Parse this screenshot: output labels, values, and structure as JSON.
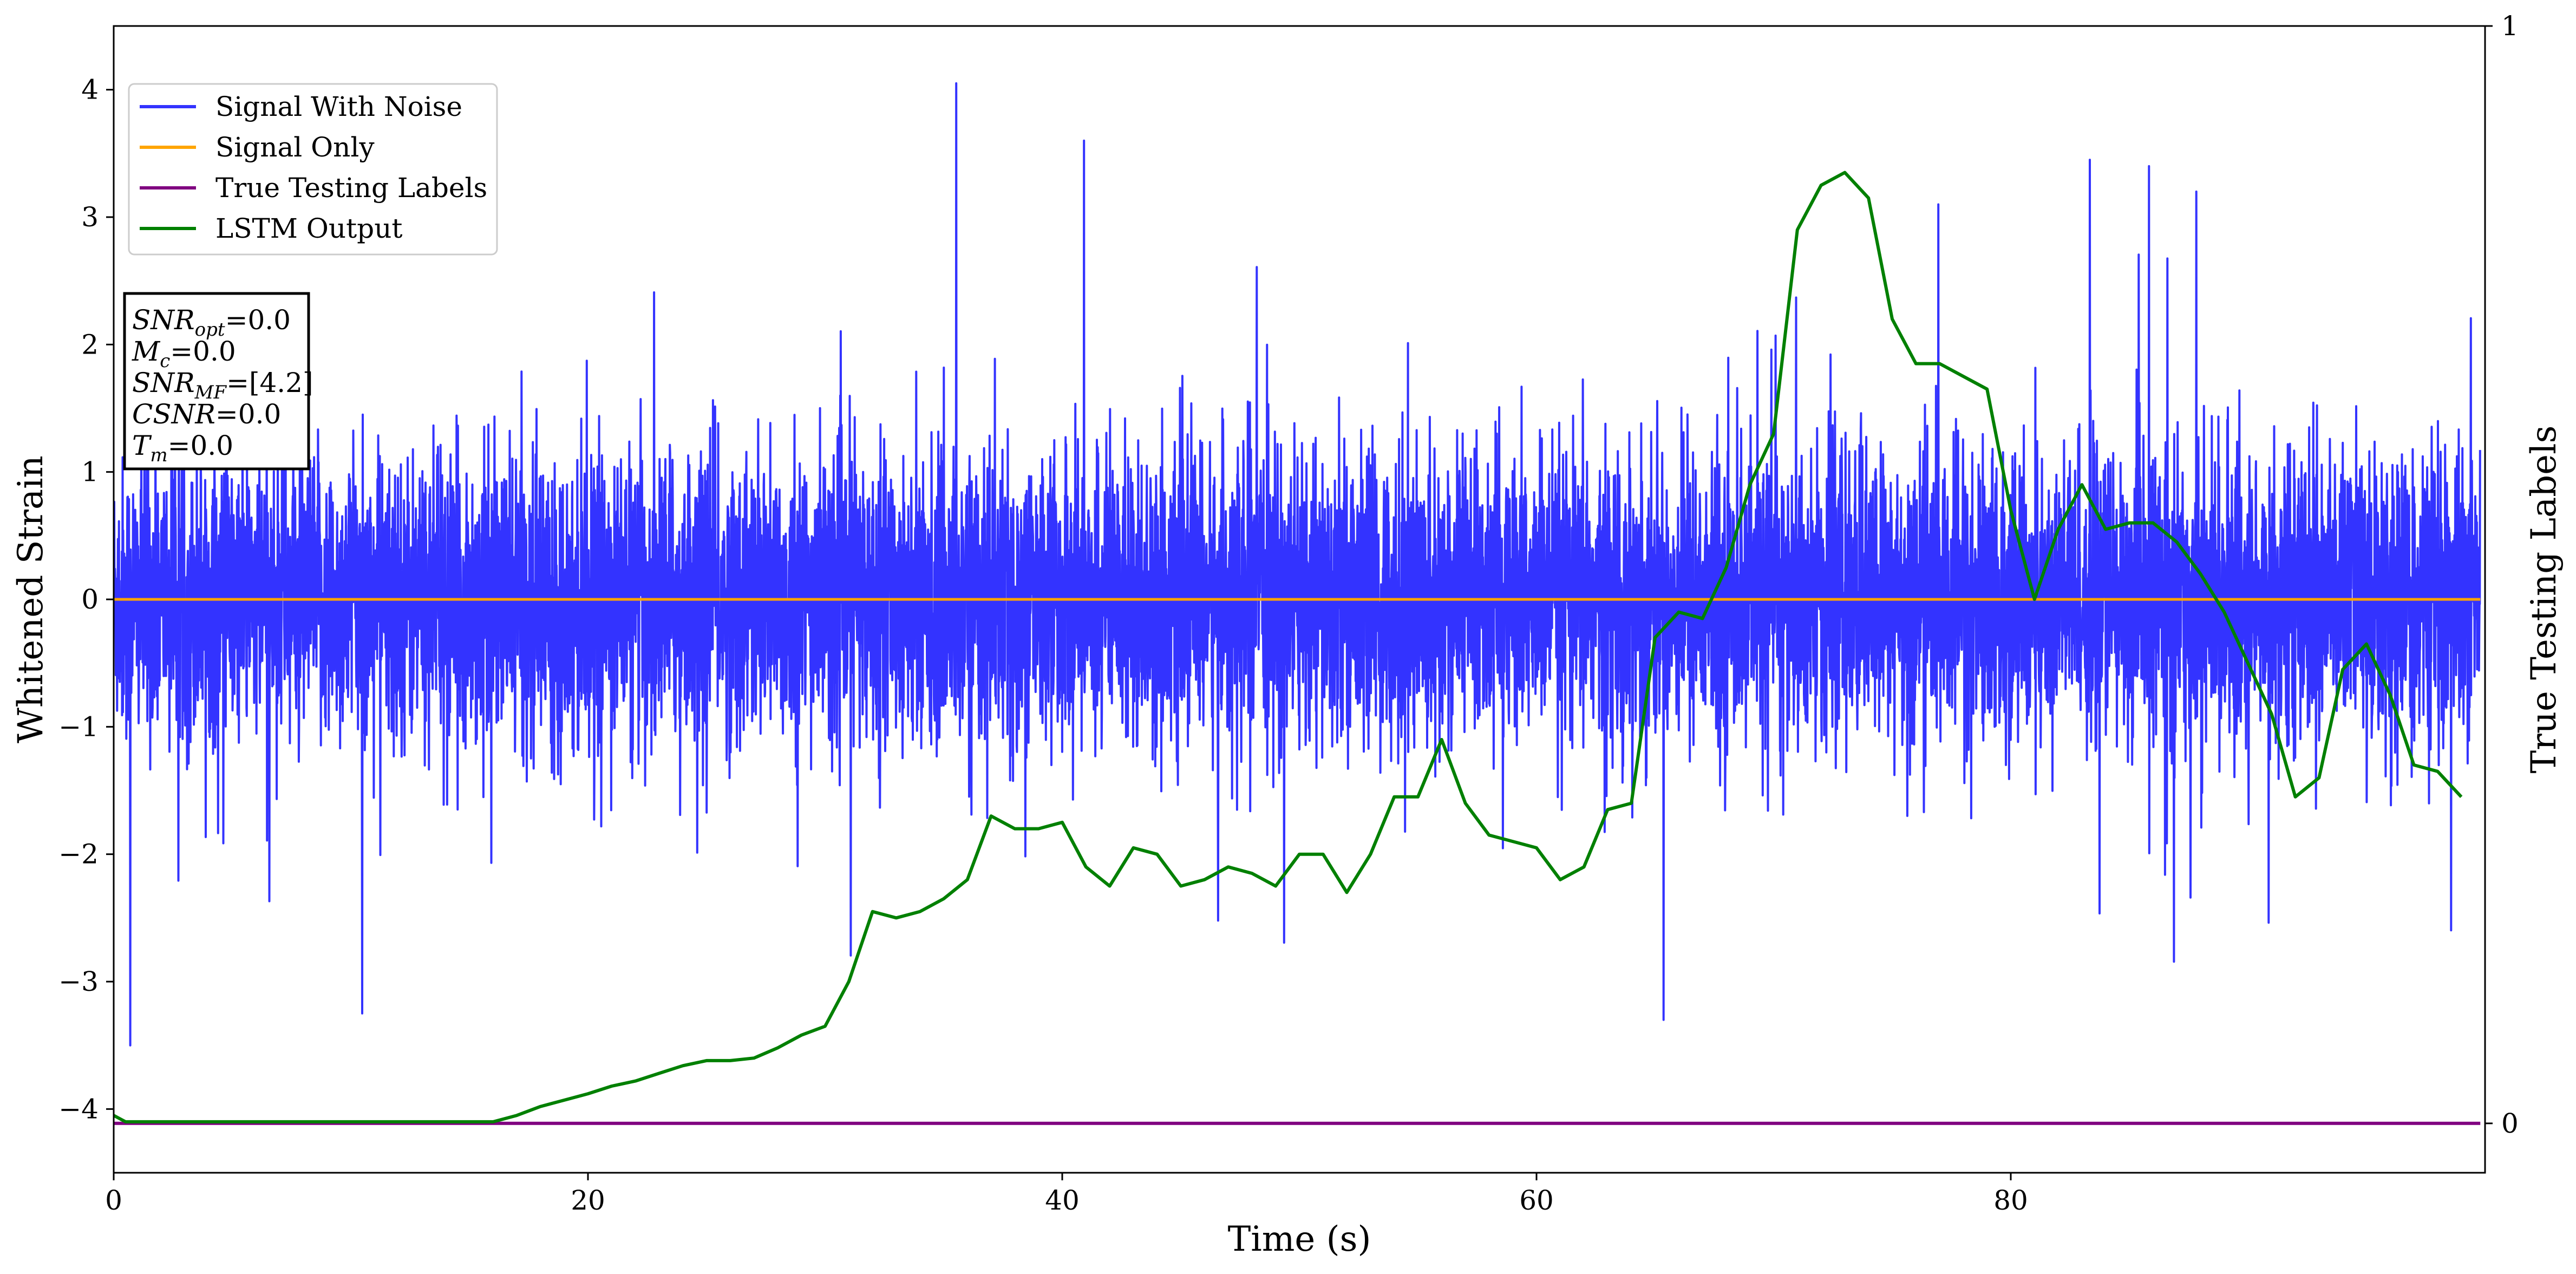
{
  "chart_data": {
    "type": "line",
    "xlabel": "Time (s)",
    "ylabel": "Whitened Strain",
    "y2label": "True Testing Labels",
    "xlim": [
      0,
      100
    ],
    "ylim": [
      -4.5,
      4.5
    ],
    "y2lim": [
      -0.045,
      1.0
    ],
    "x_ticks": [
      0,
      20,
      40,
      60,
      80
    ],
    "y_ticks": [
      -4,
      -3,
      -2,
      -1,
      0,
      1,
      2,
      3,
      4
    ],
    "y2_ticks": [
      0,
      1
    ],
    "grid": false,
    "legend_position": "upper-left",
    "series": [
      {
        "name": "Signal With Noise",
        "color": "#3333ff",
        "axis": "left",
        "description_band": [
          -1.6,
          1.5
        ],
        "peaks": [
          [
            0.7,
            -3.5
          ],
          [
            35.6,
            4.05
          ],
          [
            41,
            3.6
          ],
          [
            10.5,
            -3.25
          ],
          [
            83.5,
            3.45
          ],
          [
            86,
            3.4
          ],
          [
            88,
            3.2
          ]
        ]
      },
      {
        "name": "Signal Only",
        "color": "#ffa500",
        "axis": "left",
        "x": [
          0,
          100
        ],
        "y": [
          0,
          0
        ]
      },
      {
        "name": "True Testing Labels",
        "color": "#800080",
        "axis": "right",
        "x": [
          0,
          100
        ],
        "y": [
          0,
          0
        ]
      },
      {
        "name": "LSTM Output",
        "color": "#008000",
        "axis": "left",
        "x": [
          0,
          0.5,
          1,
          5,
          10,
          15,
          16,
          17,
          18,
          19,
          20,
          21,
          22,
          23,
          24,
          25,
          26,
          27,
          28,
          29,
          30,
          31,
          32,
          33,
          34,
          35,
          36,
          37,
          38,
          39,
          40,
          41,
          42,
          43,
          44,
          45,
          46,
          47,
          48,
          49,
          50,
          51,
          52,
          53,
          54,
          55,
          56,
          57,
          58,
          59,
          60,
          61,
          62,
          63,
          64,
          65,
          66,
          67,
          68,
          69,
          70,
          71,
          72,
          73,
          74,
          75,
          76,
          77,
          78,
          79,
          80,
          81,
          82,
          83,
          84,
          85,
          86,
          87,
          88,
          89,
          90,
          91,
          92,
          93,
          94,
          95,
          96,
          97,
          98,
          99
        ],
        "y": [
          -4.05,
          -4.1,
          -4.1,
          -4.1,
          -4.1,
          -4.1,
          -4.1,
          -4.05,
          -3.98,
          -3.93,
          -3.88,
          -3.82,
          -3.78,
          -3.72,
          -3.66,
          -3.62,
          -3.62,
          -3.6,
          -3.52,
          -3.42,
          -3.35,
          -3.0,
          -2.45,
          -2.5,
          -2.45,
          -2.35,
          -2.2,
          -1.7,
          -1.8,
          -1.8,
          -1.75,
          -2.1,
          -2.25,
          -1.95,
          -2.0,
          -2.25,
          -2.2,
          -2.1,
          -2.15,
          -2.25,
          -2.0,
          -2.0,
          -2.3,
          -2.0,
          -1.55,
          -1.55,
          -1.1,
          -1.6,
          -1.85,
          -1.9,
          -1.95,
          -2.2,
          -2.1,
          -1.65,
          -1.6,
          -0.3,
          -0.1,
          -0.15,
          0.25,
          0.9,
          1.3,
          2.9,
          3.25,
          3.35,
          3.15,
          2.2,
          1.85,
          1.85,
          1.75,
          1.65,
          0.7,
          0.0,
          0.55,
          0.9,
          0.55,
          0.6,
          0.6,
          0.45,
          0.2,
          -0.1,
          -0.5,
          -0.9,
          -1.55,
          -1.4,
          -0.55,
          -0.35,
          -0.75,
          -1.3,
          -1.35,
          -1.55
        ]
      }
    ],
    "info_box": {
      "lines": [
        {
          "sym": "SNR",
          "sub": "opt",
          "rest": "=0.0"
        },
        {
          "sym": "M",
          "sub": "c",
          "rest": "=0.0"
        },
        {
          "sym": "SNR",
          "sub": "MF",
          "rest": "=[4.2]"
        },
        {
          "sym": "CSNR",
          "sub": "",
          "rest": "=0.0"
        },
        {
          "sym": "T",
          "sub": "m",
          "rest": "=0.0"
        }
      ]
    }
  }
}
